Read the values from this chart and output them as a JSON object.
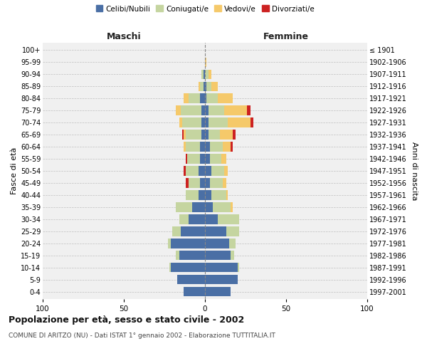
{
  "age_groups": [
    "0-4",
    "5-9",
    "10-14",
    "15-19",
    "20-24",
    "25-29",
    "30-34",
    "35-39",
    "40-44",
    "45-49",
    "50-54",
    "55-59",
    "60-64",
    "65-69",
    "70-74",
    "75-79",
    "80-84",
    "85-89",
    "90-94",
    "95-99",
    "100+"
  ],
  "birth_years": [
    "1997-2001",
    "1992-1996",
    "1987-1991",
    "1982-1986",
    "1977-1981",
    "1972-1976",
    "1967-1971",
    "1962-1966",
    "1957-1961",
    "1952-1956",
    "1947-1951",
    "1942-1946",
    "1937-1941",
    "1932-1936",
    "1927-1931",
    "1922-1926",
    "1917-1921",
    "1912-1916",
    "1907-1911",
    "1902-1906",
    "≤ 1901"
  ],
  "colors": {
    "celibe": "#4A6FA5",
    "coniugato": "#C5D5A0",
    "vedovo": "#F5C96A",
    "divorziato": "#CC2222"
  },
  "males": {
    "celibe": [
      13,
      17,
      21,
      16,
      21,
      15,
      10,
      8,
      4,
      3,
      4,
      3,
      3,
      2,
      2,
      2,
      3,
      1,
      1,
      0,
      0
    ],
    "coniugato": [
      0,
      0,
      1,
      2,
      2,
      5,
      6,
      10,
      8,
      7,
      8,
      8,
      9,
      10,
      12,
      13,
      7,
      2,
      1,
      0,
      0
    ],
    "vedovo": [
      0,
      0,
      0,
      0,
      0,
      0,
      0,
      0,
      0,
      0,
      0,
      0,
      1,
      1,
      2,
      3,
      3,
      1,
      0,
      0,
      0
    ],
    "divorziato": [
      0,
      0,
      0,
      0,
      0,
      0,
      0,
      0,
      0,
      2,
      1,
      1,
      0,
      1,
      0,
      0,
      0,
      0,
      0,
      0,
      0
    ]
  },
  "females": {
    "nubile": [
      16,
      20,
      20,
      16,
      15,
      13,
      8,
      5,
      4,
      3,
      4,
      3,
      3,
      2,
      2,
      2,
      1,
      1,
      0,
      0,
      0
    ],
    "coniugata": [
      0,
      0,
      1,
      2,
      4,
      8,
      13,
      11,
      9,
      8,
      8,
      7,
      8,
      7,
      12,
      10,
      7,
      3,
      2,
      0,
      0
    ],
    "vedova": [
      0,
      0,
      0,
      0,
      0,
      0,
      0,
      1,
      1,
      2,
      2,
      3,
      5,
      8,
      14,
      14,
      9,
      4,
      2,
      1,
      0
    ],
    "divorziata": [
      0,
      0,
      0,
      0,
      0,
      0,
      0,
      0,
      0,
      0,
      0,
      0,
      1,
      2,
      2,
      2,
      0,
      0,
      0,
      0,
      0
    ]
  },
  "title": "Popolazione per età, sesso e stato civile - 2002",
  "subtitle": "COMUNE DI ARITZO (NU) - Dati ISTAT 1° gennaio 2002 - Elaborazione TUTTITALIA.IT",
  "xlabel_left": "Maschi",
  "xlabel_right": "Femmine",
  "ylabel_left": "Fasce di età",
  "ylabel_right": "Anni di nascita",
  "xlim": 100,
  "bg_color": "#FFFFFF",
  "plot_bg_color": "#F0F0F0",
  "grid_color": "#BBBBBB"
}
